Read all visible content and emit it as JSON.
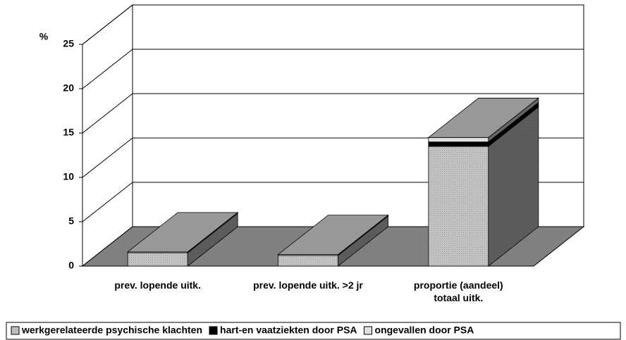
{
  "chart_data": {
    "type": "bar3d_stacked",
    "y_label": "%",
    "categories": [
      "prev. lopende uitk.",
      "prev. lopende uitk. >2 jr",
      "proportie (aandeel)\ntotaal uitk."
    ],
    "series": [
      {
        "name": "werkgerelateerde psychische klachten",
        "color": "#c8c8c8",
        "values": [
          1.5,
          1.2,
          13.5
        ]
      },
      {
        "name": "hart-en vaatziekten door PSA",
        "color": "#000000",
        "values": [
          0,
          0,
          0.5
        ]
      },
      {
        "name": "ongevallen door PSA",
        "color": "#e0e0e0",
        "values": [
          0.1,
          0.1,
          0.5
        ]
      }
    ],
    "ylim": [
      0,
      25
    ],
    "yticks": [
      0,
      5,
      10,
      15,
      20,
      25
    ],
    "grid": true
  }
}
